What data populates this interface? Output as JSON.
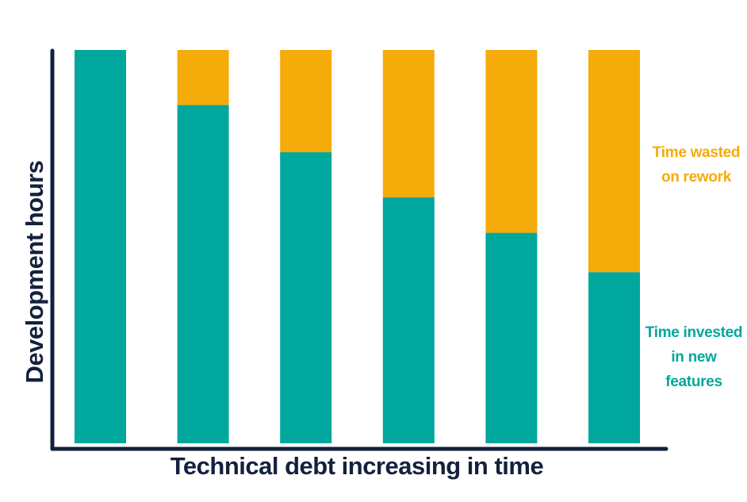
{
  "chart_data": {
    "type": "bar",
    "stacked": true,
    "categories": [
      "",
      "",
      "",
      "",
      "",
      ""
    ],
    "series": [
      {
        "name": "Time invested in new features",
        "label_lines": [
          "Time invested",
          "in new",
          "features"
        ],
        "color": "#00a79d",
        "values": [
          100,
          86,
          74,
          62.5,
          53.5,
          43.5
        ]
      },
      {
        "name": "Time wasted on rework",
        "label_lines": [
          "Time wasted",
          "on rework"
        ],
        "color": "#f5ab0a",
        "values": [
          0,
          14,
          26,
          37.5,
          46.5,
          56.5
        ]
      }
    ],
    "xlabel": "Technical debt increasing in time",
    "ylabel": "Development hours",
    "ylim": [
      0,
      100
    ],
    "grid": false,
    "legend": "right",
    "axis_color": "#14213d"
  }
}
